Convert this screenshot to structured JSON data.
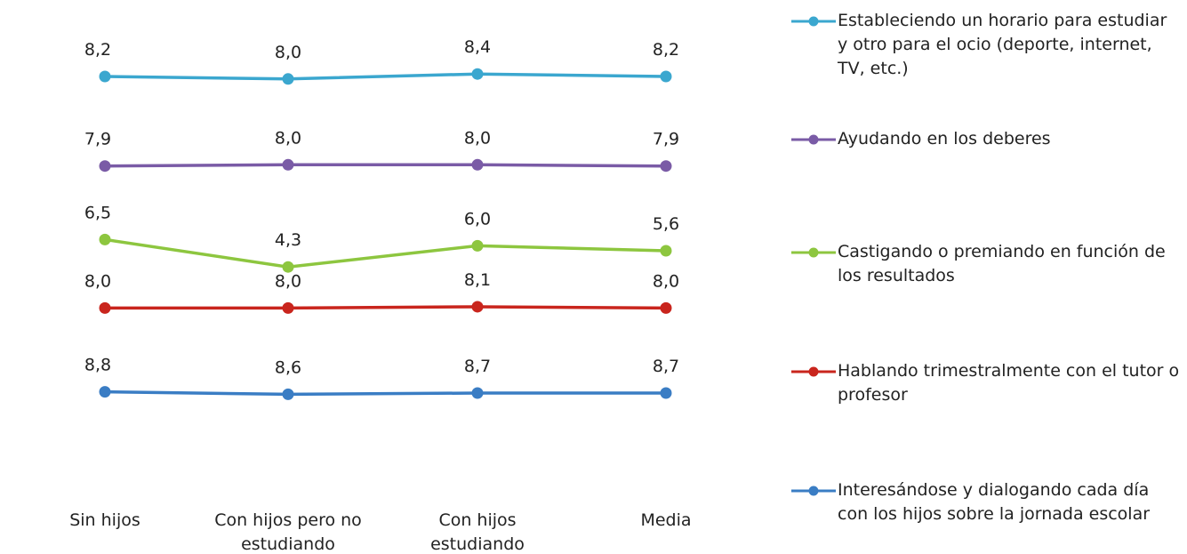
{
  "chart_data": {
    "type": "line",
    "categories": [
      "Sin hijos",
      "Con hijos pero no estudiando",
      "Con hijos estudiando",
      "Media"
    ],
    "series": [
      {
        "name": "Estableciendo un horario para estudiar y otro para el ocio (deporte, internet, TV, etc.)",
        "color": "#3ba7cf",
        "values": [
          8.2,
          8.0,
          8.4,
          8.2
        ],
        "value_labels": [
          "8,2",
          "8,0",
          "8,4",
          "8,2"
        ]
      },
      {
        "name": "Ayudando en los deberes",
        "color": "#7a5ba6",
        "values": [
          7.9,
          8.0,
          8.0,
          7.9
        ],
        "value_labels": [
          "7,9",
          "8,0",
          "8,0",
          "7,9"
        ]
      },
      {
        "name": "Castigando o premiando en función de los resultados",
        "color": "#8dc63f",
        "values": [
          6.5,
          4.3,
          6.0,
          5.6
        ],
        "value_labels": [
          "6,5",
          "4,3",
          "6,0",
          "5,6"
        ]
      },
      {
        "name": "Hablando trimestralmente con el tutor o profesor",
        "color": "#c9251d",
        "values": [
          8.0,
          8.0,
          8.1,
          8.0
        ],
        "value_labels": [
          "8,0",
          "8,0",
          "8,1",
          "8,0"
        ]
      },
      {
        "name": "Interesándose y dialogando cada día con los hijos sobre la jornada escolar",
        "color": "#3a7dc4",
        "values": [
          8.8,
          8.6,
          8.7,
          8.7
        ],
        "value_labels": [
          "8,8",
          "8,6",
          "8,7",
          "8,7"
        ]
      }
    ]
  }
}
